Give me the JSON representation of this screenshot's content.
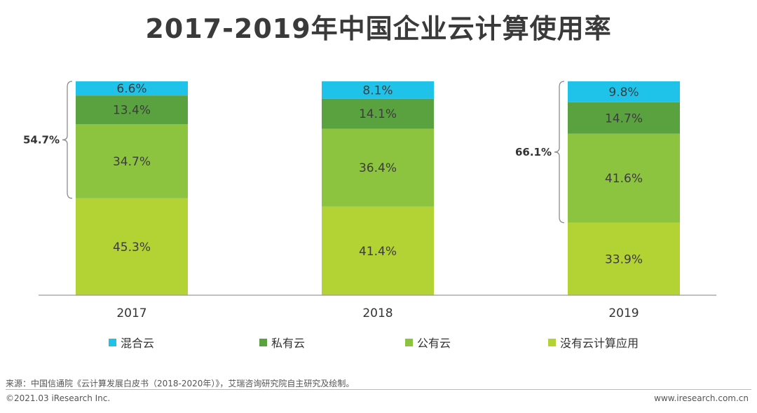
{
  "title": "2017-2019年中国企业云计算使用率",
  "chart_data": {
    "type": "bar",
    "stacked": true,
    "title": "2017-2019年中国企业云计算使用率",
    "categories": [
      "2017",
      "2018",
      "2019"
    ],
    "series": [
      {
        "name": "没有云计算应用",
        "values": [
          45.3,
          41.4,
          33.9
        ],
        "color": "#b3d234"
      },
      {
        "name": "公有云",
        "values": [
          34.7,
          36.4,
          41.6
        ],
        "color": "#8dc43f"
      },
      {
        "name": "私有云",
        "values": [
          13.4,
          14.1,
          14.7
        ],
        "color": "#5aa23f"
      },
      {
        "name": "混合云",
        "values": [
          6.6,
          8.1,
          9.8
        ],
        "color": "#1fc3ea"
      }
    ],
    "value_labels": [
      [
        "45.3%",
        "34.7%",
        "13.4%",
        "6.6%"
      ],
      [
        "41.4%",
        "36.4%",
        "14.1%",
        "8.1%"
      ],
      [
        "33.9%",
        "41.6%",
        "14.7%",
        "9.8%"
      ]
    ],
    "brace_annotations": [
      {
        "category": "2017",
        "label": "54.7%"
      },
      {
        "category": "2019",
        "label": "66.1%"
      }
    ],
    "ylim": [
      0,
      100
    ],
    "xlabel": "",
    "ylabel": "",
    "legend_position": "bottom"
  },
  "legend_order": [
    "混合云",
    "私有云",
    "公有云",
    "没有云计算应用"
  ],
  "footer": {
    "source": "来源：中国信通院《云计算发展白皮书（2018-2020年）》，艾瑞咨询研究院自主研究及绘制。",
    "copyright": "©2021.03 iResearch Inc.",
    "website": "www.iresearch.com.cn"
  }
}
